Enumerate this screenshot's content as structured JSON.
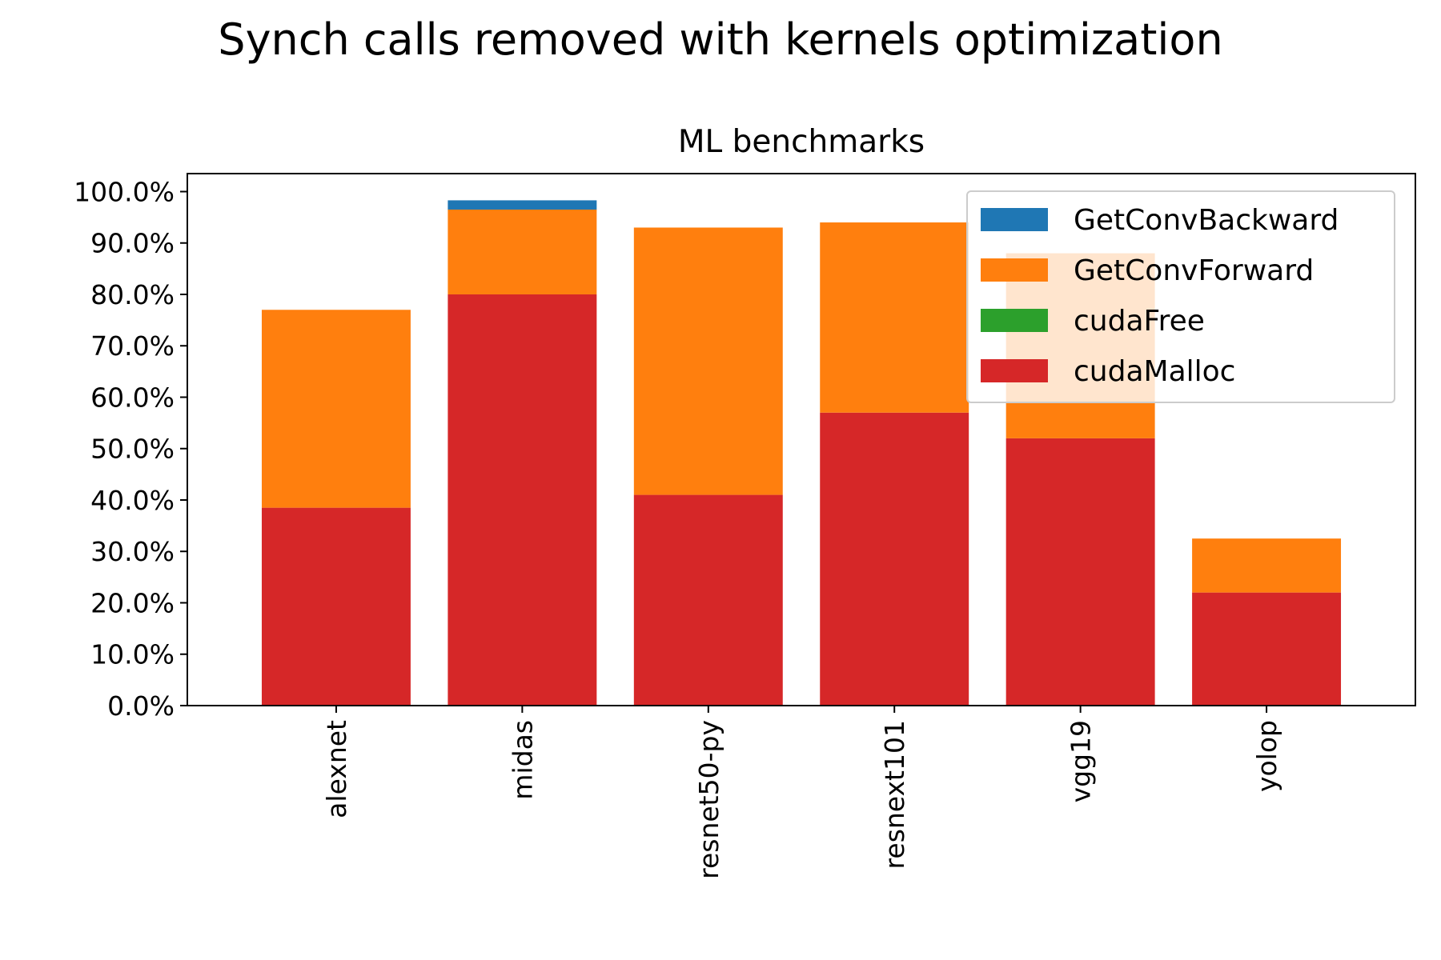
{
  "chart_data": {
    "type": "bar",
    "stacked": true,
    "suptitle": "Synch calls removed with kernels optimization",
    "title": "ML benchmarks",
    "xlabel": "",
    "ylabel": "",
    "categories": [
      "alexnet",
      "midas",
      "resnet50-py",
      "resnext101",
      "vgg19",
      "yolop"
    ],
    "ylim": [
      0,
      103.5
    ],
    "yticks": [
      0,
      10,
      20,
      30,
      40,
      50,
      60,
      70,
      80,
      90,
      100
    ],
    "ytick_labels": [
      "0.0%",
      "10.0%",
      "20.0%",
      "30.0%",
      "40.0%",
      "50.0%",
      "60.0%",
      "70.0%",
      "80.0%",
      "90.0%",
      "100.0%"
    ],
    "legend_position": "upper right",
    "series": [
      {
        "name": "cudaMalloc",
        "color": "#d62728",
        "values": [
          38.5,
          80.0,
          41.0,
          57.0,
          52.0,
          22.0
        ]
      },
      {
        "name": "cudaFree",
        "color": "#2ca02c",
        "values": [
          0,
          0,
          0,
          0,
          0,
          0
        ]
      },
      {
        "name": "GetConvForward",
        "color": "#ff7f0e",
        "values": [
          38.5,
          16.5,
          52.0,
          37.0,
          36.0,
          10.5
        ]
      },
      {
        "name": "GetConvBackward",
        "color": "#1f77b4",
        "values": [
          0,
          1.8,
          0,
          0,
          0,
          0
        ]
      }
    ],
    "legend_order": [
      "GetConvBackward",
      "GetConvForward",
      "cudaFree",
      "cudaMalloc"
    ]
  }
}
